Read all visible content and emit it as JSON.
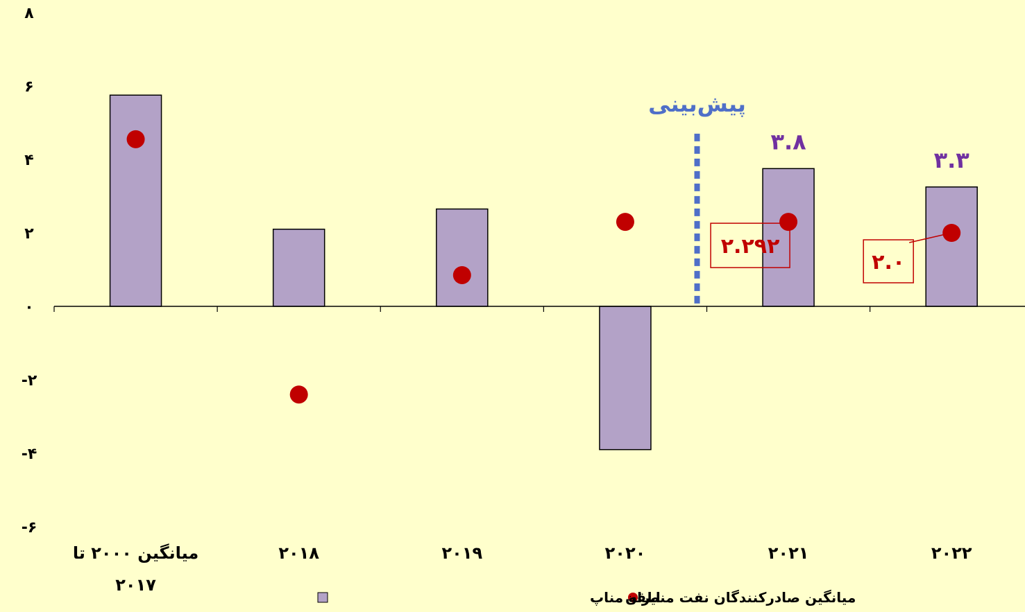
{
  "chart_data": {
    "type": "bar",
    "categories": [
      "میانگین ۲۰۰۰ تا ۲۰۱۷",
      "۲۰۱۸",
      "۲۰۱۹",
      "۲۰۲۰",
      "۲۰۲۱",
      "۲۰۲۲"
    ],
    "series": [
      {
        "name": "میانگین صادرکنندگان نفت منطقه مناپ",
        "type": "bar",
        "color": "#b3a2c7",
        "values": [
          5.75,
          2.1,
          2.65,
          -3.9,
          3.75,
          3.25
        ]
      },
      {
        "name": "ایران",
        "type": "scatter",
        "color": "#c00000",
        "values": [
          4.55,
          -2.4,
          0.85,
          2.3,
          2.3,
          2.0
        ]
      }
    ],
    "ylim": [
      -6,
      8
    ],
    "yticks": [
      {
        "value": 8,
        "label": "۸"
      },
      {
        "value": 6,
        "label": "۶"
      },
      {
        "value": 4,
        "label": "۴"
      },
      {
        "value": 2,
        "label": "۲"
      },
      {
        "value": 0,
        "label": "۰"
      },
      {
        "value": -2,
        "label": "-۲"
      },
      {
        "value": -4,
        "label": "-۴"
      },
      {
        "value": -6,
        "label": "-۶"
      }
    ],
    "bar_labels": [
      {
        "index": 4,
        "text": "۳.۸"
      },
      {
        "index": 5,
        "text": "۳.۳"
      }
    ],
    "callouts": [
      {
        "index": 4,
        "text": "۲.۲۹۲"
      },
      {
        "index": 5,
        "text": "۲.۰"
      }
    ],
    "forecast": {
      "label": "پیش‌بینی",
      "color": "#4f6fc8"
    },
    "legend": {
      "position": "bottom",
      "items": [
        {
          "label": "میانگین صادرکنندگان نفت منطقه مناپ",
          "marker": "square"
        },
        {
          "label": "ایران",
          "marker": "circle"
        }
      ]
    }
  }
}
